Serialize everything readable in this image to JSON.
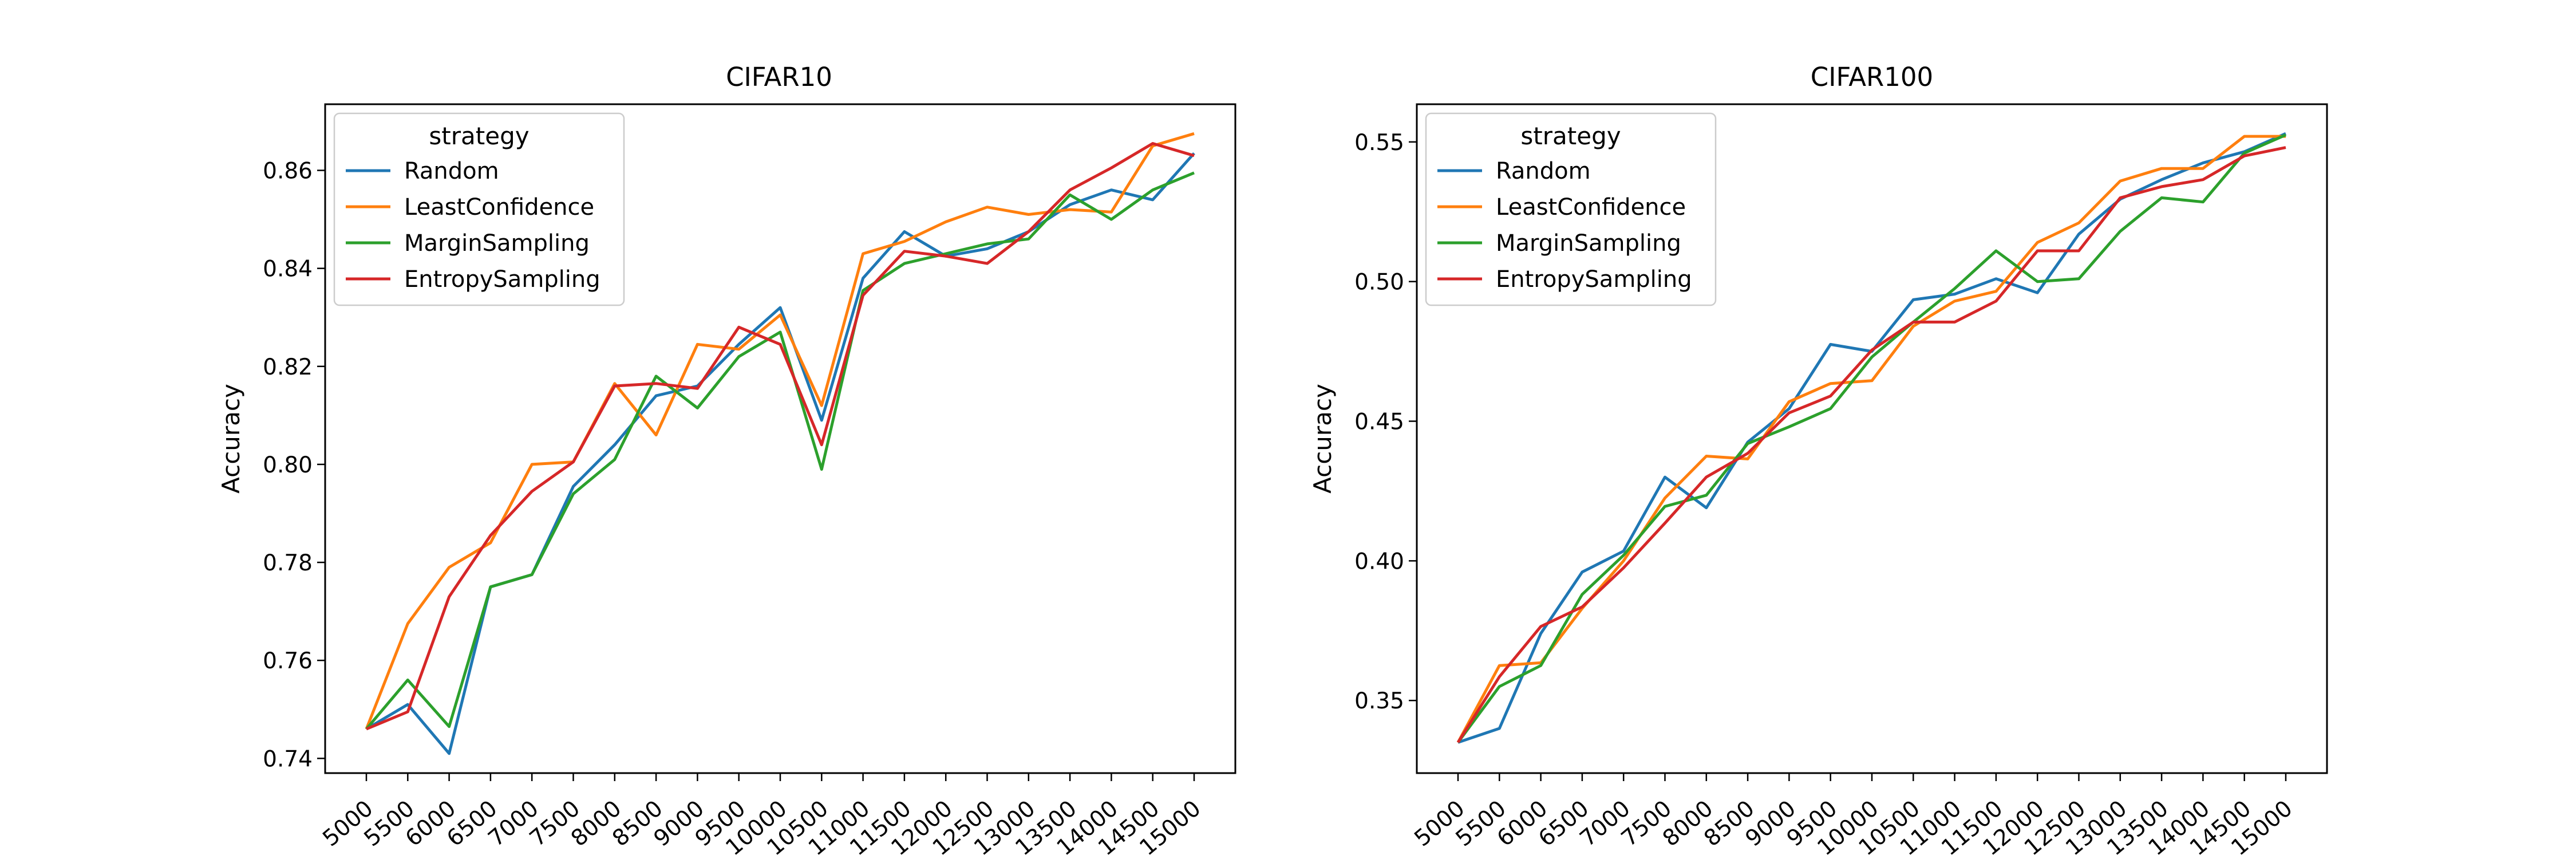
{
  "chart_data": [
    {
      "type": "line",
      "title": "CIFAR10",
      "xlabel": "",
      "ylabel": "Accuracy",
      "x": [
        5000,
        5500,
        6000,
        6500,
        7000,
        7500,
        8000,
        8500,
        9000,
        9500,
        10000,
        10500,
        11000,
        11500,
        12000,
        12500,
        13000,
        13500,
        14000,
        14500,
        15000
      ],
      "ylim": [
        0.737,
        0.8735
      ],
      "yticks": [
        0.74,
        0.76,
        0.78,
        0.8,
        0.82,
        0.84,
        0.86
      ],
      "ytick_labels": [
        "0.74",
        "0.76",
        "0.78",
        "0.80",
        "0.82",
        "0.84",
        "0.86"
      ],
      "grid": false,
      "legend": {
        "title": "strategy",
        "placement": "upper-left"
      },
      "series": [
        {
          "name": "Random",
          "color": "#1f77b4",
          "values": [
            0.746,
            0.751,
            0.741,
            0.775,
            0.7775,
            0.7955,
            0.804,
            0.814,
            0.816,
            0.8245,
            0.832,
            0.809,
            0.838,
            0.8475,
            0.8425,
            0.844,
            0.8475,
            0.853,
            0.856,
            0.854,
            0.8635
          ]
        },
        {
          "name": "LeastConfidence",
          "color": "#ff7f0e",
          "values": [
            0.746,
            0.7675,
            0.779,
            0.784,
            0.8,
            0.8005,
            0.8165,
            0.806,
            0.8245,
            0.8235,
            0.8305,
            0.812,
            0.843,
            0.8455,
            0.8495,
            0.8525,
            0.851,
            0.852,
            0.8515,
            0.865,
            0.8675
          ]
        },
        {
          "name": "MarginSampling",
          "color": "#2ca02c",
          "values": [
            0.746,
            0.756,
            0.7465,
            0.775,
            0.7775,
            0.794,
            0.801,
            0.818,
            0.8115,
            0.822,
            0.827,
            0.799,
            0.8355,
            0.841,
            0.843,
            0.845,
            0.846,
            0.855,
            0.85,
            0.856,
            0.8595
          ]
        },
        {
          "name": "EntropySampling",
          "color": "#d62728",
          "values": [
            0.746,
            0.7495,
            0.773,
            0.7855,
            0.7945,
            0.8005,
            0.816,
            0.8165,
            0.8155,
            0.828,
            0.8245,
            0.804,
            0.8345,
            0.8435,
            0.8425,
            0.841,
            0.8475,
            0.856,
            0.8605,
            0.8655,
            0.863
          ]
        }
      ]
    },
    {
      "type": "line",
      "title": "CIFAR100",
      "xlabel": "",
      "ylabel": "Accuracy",
      "x": [
        5000,
        5500,
        6000,
        6500,
        7000,
        7500,
        8000,
        8500,
        9000,
        9500,
        10000,
        10500,
        11000,
        11500,
        12000,
        12500,
        13000,
        13500,
        14000,
        14500,
        15000
      ],
      "ylim": [
        0.324,
        0.5635
      ],
      "yticks": [
        0.35,
        0.4,
        0.45,
        0.5,
        0.55
      ],
      "ytick_labels": [
        "0.35",
        "0.40",
        "0.45",
        "0.50",
        "0.55"
      ],
      "grid": false,
      "legend": {
        "title": "strategy",
        "placement": "upper-left"
      },
      "series": [
        {
          "name": "Random",
          "color": "#1f77b4",
          "values": [
            0.335,
            0.34,
            0.374,
            0.396,
            0.4035,
            0.43,
            0.419,
            0.4425,
            0.4545,
            0.4775,
            0.475,
            0.4935,
            0.4955,
            0.501,
            0.496,
            0.517,
            0.5295,
            0.5365,
            0.5425,
            0.5465,
            0.553
          ]
        },
        {
          "name": "LeastConfidence",
          "color": "#ff7f0e",
          "values": [
            0.335,
            0.3625,
            0.3635,
            0.383,
            0.4,
            0.4225,
            0.4375,
            0.4365,
            0.457,
            0.4635,
            0.4645,
            0.484,
            0.493,
            0.4965,
            0.514,
            0.521,
            0.536,
            0.5405,
            0.5405,
            0.552,
            0.552
          ]
        },
        {
          "name": "MarginSampling",
          "color": "#2ca02c",
          "values": [
            0.335,
            0.355,
            0.3625,
            0.388,
            0.402,
            0.4195,
            0.4235,
            0.442,
            0.448,
            0.4545,
            0.473,
            0.4855,
            0.4975,
            0.511,
            0.5,
            0.501,
            0.518,
            0.53,
            0.5285,
            0.546,
            0.5525
          ]
        },
        {
          "name": "EntropySampling",
          "color": "#d62728",
          "values": [
            0.335,
            0.3585,
            0.3765,
            0.3835,
            0.3975,
            0.4135,
            0.43,
            0.4385,
            0.453,
            0.459,
            0.4755,
            0.4855,
            0.4855,
            0.493,
            0.511,
            0.511,
            0.53,
            0.534,
            0.5365,
            0.545,
            0.548
          ]
        }
      ]
    }
  ]
}
